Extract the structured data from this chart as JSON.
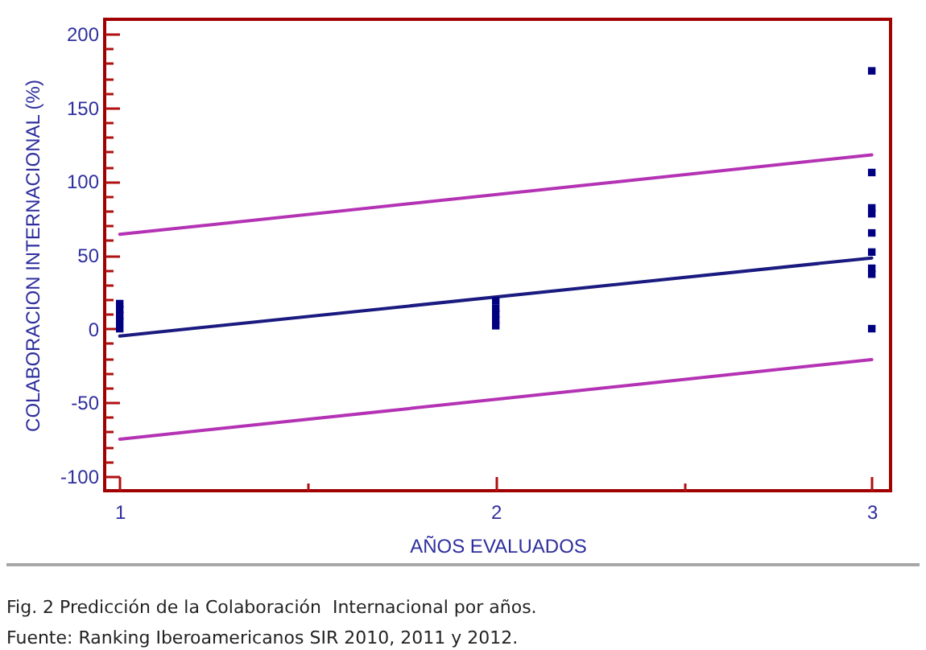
{
  "chart_data": {
    "type": "scatter",
    "ylabel": "COLABORACION INTERNACIONAL (%)",
    "xlabel": "AÑOS EVALUADOS",
    "annotations": [
      "Fig. 2 Predicción de la Colaboración  Internacional por años.",
      "Fuente: Ranking Iberoamericanos SIR 2010, 2011 y 2012."
    ],
    "series": [
      {
        "type": "line",
        "color": "#b432b4",
        "x": [
          1,
          3
        ],
        "values": [
          64,
          118
        ]
      },
      {
        "type": "line",
        "color": "#b432b4",
        "x": [
          1,
          3
        ],
        "values": [
          -75,
          -21
        ]
      },
      {
        "type": "line",
        "color": "#1a1a80",
        "x": [
          1,
          3
        ],
        "values": [
          -5,
          48
        ]
      },
      {
        "color": "#000080",
        "marker": "square",
        "x": [
          1,
          1,
          1,
          1,
          1,
          2,
          2,
          2,
          2,
          2,
          3,
          3,
          3,
          3,
          3,
          3,
          3,
          3,
          3
        ],
        "values": [
          0,
          5,
          9,
          13,
          17,
          2,
          6,
          10,
          14,
          19,
          175,
          106,
          82,
          78,
          65,
          52,
          41,
          37,
          0
        ]
      }
    ],
    "xlim": [
      0.96,
      3.05
    ],
    "ylim": [
      -110,
      210
    ],
    "xticks": [
      1,
      {
        "value": 1.5,
        "label": null
      },
      2,
      {
        "value": 2.5,
        "label": null
      },
      3
    ],
    "yticks": [
      -100,
      {
        "value": -90,
        "label": null
      },
      {
        "value": -80,
        "label": null
      },
      {
        "value": -70,
        "label": null
      },
      {
        "value": -60,
        "label": null
      },
      -50,
      {
        "value": -40,
        "label": null
      },
      {
        "value": -30,
        "label": null
      },
      {
        "value": -20,
        "label": null
      },
      {
        "value": -10,
        "label": null
      },
      0,
      {
        "value": 10,
        "label": null
      },
      {
        "value": 20,
        "label": null
      },
      {
        "value": 30,
        "label": null
      },
      {
        "value": 40,
        "label": null
      },
      50,
      {
        "value": 60,
        "label": null
      },
      {
        "value": 70,
        "label": null
      },
      {
        "value": 80,
        "label": null
      },
      {
        "value": 90,
        "label": null
      },
      100,
      {
        "value": 110,
        "label": null
      },
      {
        "value": 120,
        "label": null
      },
      {
        "value": 130,
        "label": null
      },
      {
        "value": 140,
        "label": null
      },
      150,
      {
        "value": 160,
        "label": null
      },
      {
        "value": 170,
        "label": null
      },
      {
        "value": 180,
        "label": null
      },
      {
        "value": 190,
        "label": null
      },
      200
    ]
  }
}
